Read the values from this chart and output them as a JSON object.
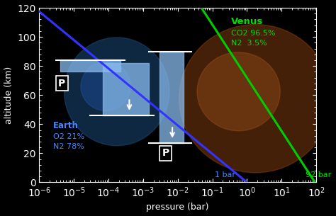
{
  "xlabel": "pressure (bar)",
  "ylabel": "altitude (km)",
  "xlim_log": [
    -6,
    2
  ],
  "ylim": [
    0,
    120
  ],
  "background_color": "#000000",
  "earth_curve_color": "#3333ff",
  "venus_curve_color": "#00cc00",
  "tick_color": "#ffffff",
  "axis_color": "#ffffff",
  "earth_pressure_at_0km": 1.0,
  "venus_pressure_at_0km": 92.0,
  "earth_scale_height_km": 8.5,
  "venus_scale_height_km": 15.9,
  "bar_color": "#88bbee",
  "bar_alpha": 0.75,
  "earth_label_color": "#4488ff",
  "venus_label_color": "#00dd00",
  "white": "#ffffff"
}
